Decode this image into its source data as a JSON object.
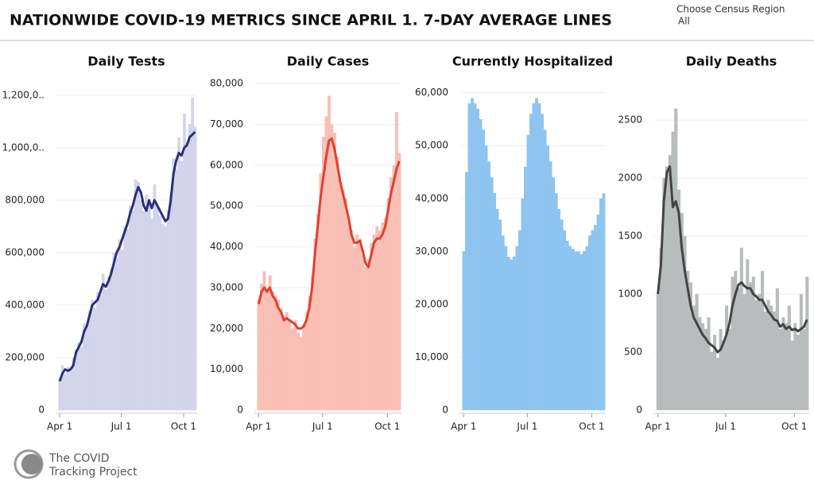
{
  "header": {
    "title": "NATIONWIDE COVID-19 METRICS SINCE APRIL 1. 7-DAY AVERAGE LINES",
    "filter_label": "Choose Census Region",
    "filter_value": "All"
  },
  "footer": {
    "logo_line1": "The COVID",
    "logo_line2": "Tracking Project"
  },
  "chart_data": [
    {
      "type": "bar_line",
      "title": "Daily Tests",
      "bar_color": "#d3d3ea",
      "line_color": "#2b2f7a",
      "x": [
        0,
        4,
        8,
        12,
        16,
        20,
        24,
        28,
        32,
        36,
        40,
        44,
        48,
        52,
        56,
        60,
        64,
        68,
        72,
        76,
        80,
        84,
        88,
        92,
        96,
        100,
        104,
        108,
        112,
        116,
        120,
        124,
        128,
        132,
        136,
        140,
        144,
        148,
        152,
        156,
        160,
        164,
        168,
        172,
        176,
        180,
        184,
        188,
        192,
        196,
        200
      ],
      "values": [
        120000,
        170000,
        140000,
        165000,
        150000,
        200000,
        230000,
        260000,
        240000,
        330000,
        310000,
        380000,
        420000,
        390000,
        450000,
        440000,
        520000,
        460000,
        510000,
        540000,
        600000,
        580000,
        650000,
        610000,
        700000,
        690000,
        780000,
        760000,
        880000,
        870000,
        800000,
        760000,
        820000,
        790000,
        730000,
        860000,
        780000,
        740000,
        710000,
        700000,
        760000,
        820000,
        960000,
        920000,
        1040000,
        950000,
        1130000,
        1020000,
        1090000,
        1190000,
        1080000
      ],
      "average": [
        110000,
        140000,
        155000,
        150000,
        155000,
        170000,
        220000,
        240000,
        260000,
        300000,
        320000,
        360000,
        400000,
        410000,
        420000,
        450000,
        480000,
        470000,
        490000,
        520000,
        560000,
        600000,
        620000,
        650000,
        680000,
        710000,
        750000,
        780000,
        820000,
        850000,
        830000,
        780000,
        760000,
        800000,
        770000,
        800000,
        780000,
        760000,
        740000,
        720000,
        730000,
        800000,
        900000,
        950000,
        980000,
        970000,
        1000000,
        1010000,
        1040000,
        1050000,
        1060000
      ],
      "xlim": [
        -6,
        203
      ],
      "xticks": [
        {
          "value": 0,
          "label": "Apr 1"
        },
        {
          "value": 91,
          "label": "Jul 1"
        },
        {
          "value": 183,
          "label": "Oct 1"
        }
      ],
      "ylim": [
        0,
        1260000
      ],
      "yticks": [
        0,
        {
          "value": 200000,
          "label": "200,000"
        },
        {
          "value": 400000,
          "label": "400,000"
        },
        {
          "value": 600000,
          "label": "600,000"
        },
        {
          "value": 800000,
          "label": "800,000"
        },
        {
          "value": 1000000,
          "label": "1,000,0.."
        },
        {
          "value": 1200000,
          "label": "1,200,0.."
        }
      ],
      "grid": true
    },
    {
      "type": "bar_line",
      "title": "Daily Cases",
      "bar_color": "#f9bfb5",
      "line_color": "#e04030",
      "x": [
        0,
        4,
        8,
        12,
        16,
        20,
        24,
        28,
        32,
        36,
        40,
        44,
        48,
        52,
        56,
        60,
        64,
        68,
        72,
        76,
        80,
        84,
        88,
        92,
        96,
        100,
        104,
        108,
        112,
        116,
        120,
        124,
        128,
        132,
        136,
        140,
        144,
        148,
        152,
        156,
        160,
        164,
        168,
        172,
        176,
        180,
        184,
        188,
        192,
        196,
        200
      ],
      "values": [
        27000,
        31000,
        34000,
        30000,
        33000,
        29000,
        28000,
        27000,
        25000,
        23000,
        24000,
        22000,
        20000,
        22000,
        19000,
        18000,
        21000,
        24000,
        28000,
        33000,
        42000,
        48000,
        58000,
        67000,
        72000,
        77000,
        70000,
        68000,
        62000,
        56000,
        54000,
        52000,
        46000,
        44000,
        40000,
        43000,
        42000,
        38000,
        35000,
        37000,
        41000,
        43000,
        45000,
        44000,
        46000,
        47000,
        52000,
        57000,
        60000,
        73000,
        63000
      ],
      "average": [
        26000,
        29000,
        30000,
        29000,
        30000,
        28000,
        27000,
        25000,
        24000,
        22000,
        22500,
        22000,
        21500,
        21000,
        20000,
        20000,
        20500,
        22000,
        25000,
        30000,
        38000,
        45000,
        52000,
        57000,
        62000,
        66000,
        66500,
        64000,
        60000,
        56000,
        53000,
        50000,
        47000,
        43000,
        41000,
        41000,
        41500,
        39000,
        36000,
        35000,
        38000,
        41000,
        42000,
        42000,
        43000,
        45000,
        49000,
        53000,
        56000,
        59000,
        61000
      ],
      "xlim": [
        -6,
        203
      ],
      "xticks": [
        {
          "value": 0,
          "label": "Apr 1"
        },
        {
          "value": 91,
          "label": "Jul 1"
        },
        {
          "value": 183,
          "label": "Oct 1"
        }
      ],
      "ylim": [
        0,
        81000
      ],
      "yticks": [
        0,
        {
          "value": 10000,
          "label": "10,000"
        },
        {
          "value": 20000,
          "label": "20,000"
        },
        {
          "value": 30000,
          "label": "30,000"
        },
        {
          "value": 40000,
          "label": "40,000"
        },
        {
          "value": 50000,
          "label": "50,000"
        },
        {
          "value": 60000,
          "label": "60,000"
        },
        {
          "value": 70000,
          "label": "70,000"
        },
        {
          "value": 80000,
          "label": "80,000"
        }
      ],
      "grid": true
    },
    {
      "type": "bar",
      "title": "Currently Hospitalized",
      "bar_color": "#8ec4f0",
      "x": [
        0,
        4,
        8,
        12,
        16,
        20,
        24,
        28,
        32,
        36,
        40,
        44,
        48,
        52,
        56,
        60,
        64,
        68,
        72,
        76,
        80,
        84,
        88,
        92,
        96,
        100,
        104,
        108,
        112,
        116,
        120,
        124,
        128,
        132,
        136,
        140,
        144,
        148,
        152,
        156,
        160,
        164,
        168,
        172,
        176,
        180,
        184,
        188,
        192,
        196,
        200
      ],
      "values": [
        30000,
        45000,
        58000,
        59000,
        58000,
        57000,
        55000,
        53000,
        50000,
        47000,
        44000,
        41000,
        38000,
        36000,
        33000,
        31000,
        29000,
        28500,
        29000,
        31000,
        34000,
        40000,
        46000,
        52000,
        56000,
        58000,
        59000,
        58000,
        56000,
        53000,
        50000,
        47000,
        44000,
        41000,
        38000,
        36000,
        34000,
        32000,
        31000,
        30500,
        30000,
        30000,
        29500,
        30000,
        31000,
        33000,
        34000,
        35000,
        37000,
        40000,
        41000
      ],
      "xlim": [
        -6,
        203
      ],
      "xticks": [
        {
          "value": 0,
          "label": "Apr 1"
        },
        {
          "value": 91,
          "label": "Jul 1"
        },
        {
          "value": 183,
          "label": "Oct 1"
        }
      ],
      "ylim": [
        0,
        62500
      ],
      "yticks": [
        0,
        {
          "value": 10000,
          "label": "10,000"
        },
        {
          "value": 20000,
          "label": "20,000"
        },
        {
          "value": 30000,
          "label": "30,000"
        },
        {
          "value": 40000,
          "label": "40,000"
        },
        {
          "value": 50000,
          "label": "50,000"
        },
        {
          "value": 60000,
          "label": "60,000"
        }
      ],
      "grid": true
    },
    {
      "type": "bar_line",
      "title": "Daily Deaths",
      "bar_color": "#b8bcbc",
      "line_color": "#444444",
      "x": [
        0,
        4,
        8,
        12,
        16,
        20,
        24,
        28,
        32,
        36,
        40,
        44,
        48,
        52,
        56,
        60,
        64,
        68,
        72,
        76,
        80,
        84,
        88,
        92,
        96,
        100,
        104,
        108,
        112,
        116,
        120,
        124,
        128,
        132,
        136,
        140,
        144,
        148,
        152,
        156,
        160,
        164,
        168,
        172,
        176,
        180,
        184,
        188,
        192,
        196,
        200
      ],
      "values": [
        1000,
        1400,
        2000,
        2100,
        2200,
        2400,
        2600,
        1900,
        1700,
        1500,
        1200,
        1100,
        900,
        1000,
        800,
        750,
        700,
        800,
        500,
        650,
        450,
        700,
        600,
        900,
        700,
        1150,
        1200,
        1050,
        1400,
        1000,
        1300,
        1100,
        1150,
        950,
        1000,
        1200,
        850,
        950,
        900,
        850,
        1050,
        700,
        800,
        750,
        900,
        600,
        750,
        650,
        1000,
        700,
        1150
      ],
      "average": [
        1000,
        1250,
        1800,
        2050,
        2100,
        1750,
        1800,
        1700,
        1400,
        1200,
        1050,
        900,
        800,
        750,
        700,
        650,
        620,
        580,
        560,
        540,
        500,
        520,
        580,
        650,
        750,
        900,
        1000,
        1080,
        1100,
        1070,
        1050,
        1050,
        1000,
        980,
        950,
        950,
        900,
        850,
        820,
        780,
        770,
        720,
        740,
        700,
        720,
        690,
        700,
        680,
        700,
        720,
        780
      ],
      "xlim": [
        -6,
        203
      ],
      "xticks": [
        {
          "value": 0,
          "label": "Apr 1"
        },
        {
          "value": 91,
          "label": "Jul 1"
        },
        {
          "value": 183,
          "label": "Oct 1"
        }
      ],
      "ylim": [
        0,
        2850
      ],
      "yticks": [
        0,
        500,
        1000,
        1500,
        2000,
        2500
      ],
      "grid": true
    }
  ]
}
